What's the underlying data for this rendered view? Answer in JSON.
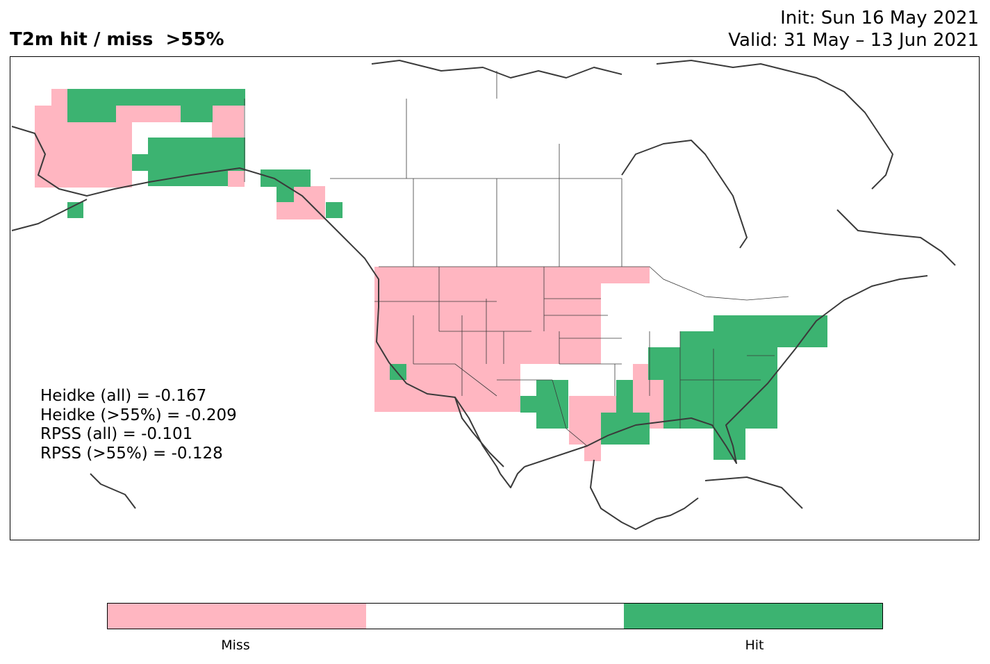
{
  "title": {
    "left": "T2m hit / miss  >55%",
    "init": "Init: Sun 16 May 2021",
    "valid": "Valid: 31 May – 13 Jun 2021"
  },
  "scores": {
    "heidke_all": "Heidke (all) = -0.167",
    "heidke_55": "Heidke (>55%) = -0.209",
    "rpss_all": "RPSS (all) = -0.101",
    "rpss_55": "RPSS (>55%) = -0.128"
  },
  "colorbar": {
    "miss_label": "Miss",
    "hit_label": "Hit",
    "colors": {
      "miss": "#ffb6c1",
      "neutral": "#ffffff",
      "hit": "#3cb371"
    }
  },
  "map": {
    "region": "North America",
    "categories": [
      "Miss",
      "Hit"
    ],
    "miss_regions": [
      "Alaska interior",
      "Southern Alaska coast",
      "Pacific Northwest",
      "US West",
      "Northern Plains",
      "Southern Plains",
      "Lower Mississippi Valley"
    ],
    "hit_regions": [
      "Northern Alaska",
      "Southern Alaska",
      "Alaska Panhandle",
      "US East",
      "US Southeast",
      "Florida",
      "Gulf Coast",
      "Texas"
    ]
  }
}
